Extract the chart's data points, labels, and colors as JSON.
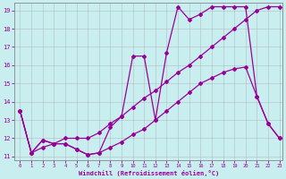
{
  "title": "",
  "xlabel": "Windchill (Refroidissement éolien,°C)",
  "ylabel": "",
  "bg_color": "#c8eef0",
  "line_color": "#990099",
  "grid_color": "#b0b0b0",
  "xlim": [
    -0.5,
    23.3
  ],
  "ylim": [
    10.8,
    19.4
  ],
  "yticks": [
    11,
    12,
    13,
    14,
    15,
    16,
    17,
    18,
    19
  ],
  "xticks": [
    0,
    1,
    2,
    3,
    4,
    5,
    6,
    7,
    8,
    9,
    10,
    11,
    12,
    13,
    14,
    15,
    16,
    17,
    18,
    19,
    20,
    21,
    22,
    23
  ],
  "series": [
    {
      "x": [
        0,
        1,
        2,
        3,
        4,
        5,
        6,
        7,
        8,
        9,
        10,
        11,
        12,
        13,
        14,
        15,
        16,
        17,
        18,
        19,
        20,
        21,
        22,
        23
      ],
      "y": [
        13.5,
        11.2,
        11.9,
        11.7,
        11.7,
        11.4,
        11.1,
        11.2,
        12.6,
        13.2,
        16.5,
        16.5,
        13.0,
        16.7,
        19.2,
        18.5,
        18.8,
        19.2,
        19.2,
        19.2,
        19.2,
        14.3,
        12.8,
        12.0
      ]
    },
    {
      "x": [
        0,
        1,
        2,
        3,
        4,
        5,
        6,
        7,
        8,
        9,
        10,
        11,
        12,
        13,
        14,
        15,
        16,
        17,
        18,
        19,
        20,
        21,
        22,
        23
      ],
      "y": [
        13.5,
        11.2,
        11.5,
        11.7,
        12.0,
        12.0,
        12.0,
        12.3,
        12.8,
        13.2,
        13.7,
        14.2,
        14.6,
        15.1,
        15.6,
        16.0,
        16.5,
        17.0,
        17.5,
        18.0,
        18.5,
        19.0,
        19.2,
        19.2
      ]
    },
    {
      "x": [
        0,
        1,
        2,
        3,
        4,
        5,
        6,
        7,
        8,
        9,
        10,
        11,
        12,
        13,
        14,
        15,
        16,
        17,
        18,
        19,
        20,
        21,
        22,
        23
      ],
      "y": [
        13.5,
        11.2,
        11.9,
        11.7,
        11.7,
        11.4,
        11.1,
        11.2,
        11.5,
        11.8,
        12.2,
        12.5,
        13.0,
        13.5,
        14.0,
        14.5,
        15.0,
        15.3,
        15.6,
        15.8,
        15.9,
        14.3,
        12.8,
        12.0
      ]
    }
  ]
}
